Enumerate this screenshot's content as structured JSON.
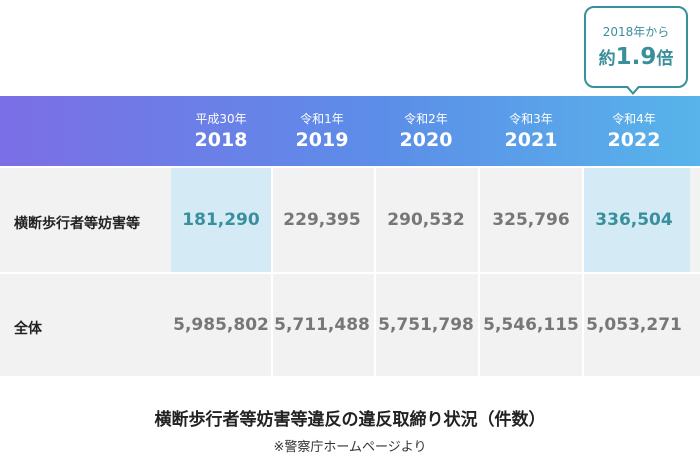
{
  "callout": {
    "line1": "2018年から",
    "prefix": "約",
    "value": "1.9",
    "suffix": "倍"
  },
  "header": {
    "columns": [
      {
        "era": "平成30年",
        "year": "2018"
      },
      {
        "era": "令和1年",
        "year": "2019"
      },
      {
        "era": "令和2年",
        "year": "2020"
      },
      {
        "era": "令和3年",
        "year": "2021"
      },
      {
        "era": "令和4年",
        "year": "2022"
      }
    ]
  },
  "rows": [
    {
      "label": "横断歩行者等妨害等",
      "values": [
        "181,290",
        "229,395",
        "290,532",
        "325,796",
        "336,504"
      ]
    },
    {
      "label": "全体",
      "values": [
        "5,985,802",
        "5,711,488",
        "5,751,798",
        "5,546,115",
        "5,053,271"
      ]
    }
  ],
  "caption": {
    "title": "横断歩行者等妨害等違反の違反取締り状況（件数）",
    "source": "※警察庁ホームページより"
  },
  "colors": {
    "accent": "#3a8f9c",
    "highlight": "#d4ebf5",
    "row_bg": "#f2f2f2"
  }
}
